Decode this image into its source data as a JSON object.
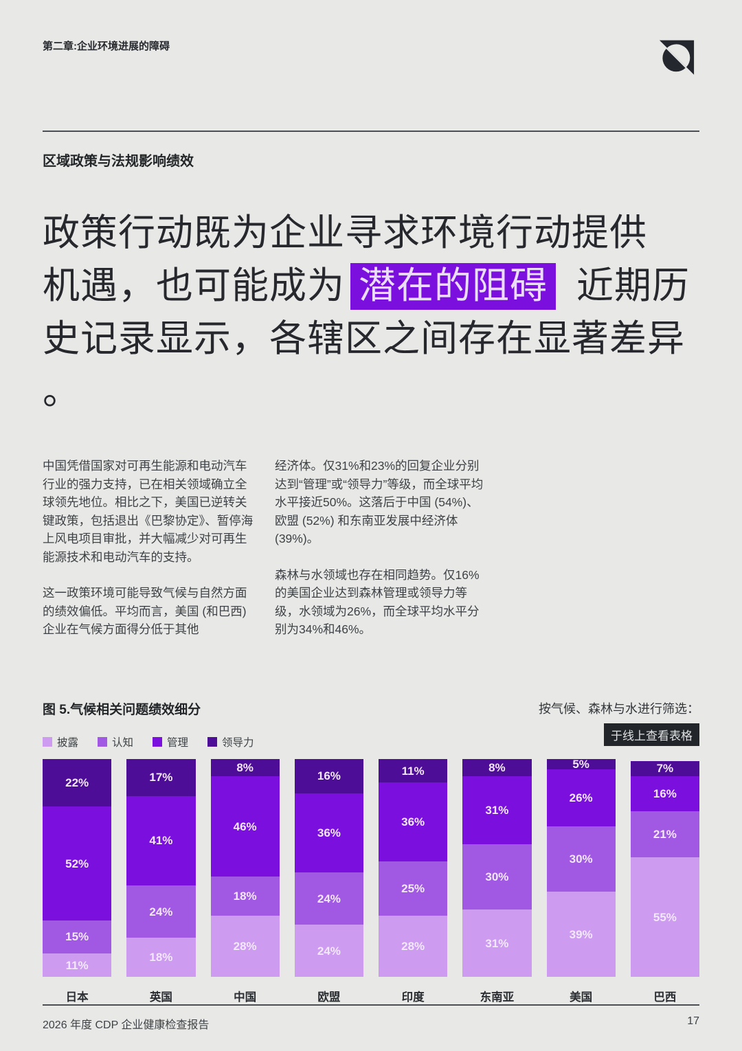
{
  "page": {
    "chapter": "第二章:企业环境进展的障碍",
    "section_heading": "区域政策与法规影响绩效",
    "footer": {
      "report_title": "2026 年度 CDP 企业健康检查报告",
      "page_number": "17"
    }
  },
  "headline": {
    "line1": "政策行动既为企业寻求环境行动提供",
    "line2_pre": "机遇，也可能成为",
    "highlight": "潜在的阻碍",
    "line2_post": "近期历",
    "line3": "史记录显示，各辖区之间存在显著差异",
    "line4": "。"
  },
  "body": {
    "left": [
      "中国凭借国家对可再生能源和电动汽车行业的强力支持，已在相关领域确立全球领先地位。相比之下，美国已逆转关键政策，包括退出《巴黎协定》、暂停海上风电项目审批，并大幅减少对可再生能源技术和电动汽车的支持。",
      "这一政策环境可能导致气候与自然方面的绩效偏低。平均而言，美国 (和巴西) 企业在气候方面得分低于其他"
    ],
    "right": [
      "经济体。仅31%和23%的回复企业分别达到“管理”或“领导力”等级，而全球平均水平接近50%。这落后于中国 (54%)、欧盟 (52%) 和东南亚发展中经济体 (39%)。",
      "森林与水领域也存在相同趋势。仅16%的美国企业达到森林管理或领导力等级，水领域为26%，而全球平均水平分别为34%和46%。"
    ]
  },
  "chart_data": {
    "type": "bar",
    "stacked": true,
    "title": "图 5.气候相关问题绩效细分",
    "filter_note": "按气候、森林与水进行筛选：",
    "link_label": "于线上查看表格",
    "categories": [
      "日本",
      "英国",
      "中国",
      "欧盟",
      "印度",
      "东南亚",
      "美国",
      "巴西"
    ],
    "series": [
      {
        "name": "披露",
        "color": "#cd9bf0",
        "values": [
          11,
          18,
          28,
          24,
          28,
          31,
          39,
          55
        ]
      },
      {
        "name": "认知",
        "color": "#a158e3",
        "values": [
          15,
          24,
          18,
          24,
          25,
          30,
          30,
          21
        ]
      },
      {
        "name": "管理",
        "color": "#7b10de",
        "values": [
          52,
          41,
          46,
          36,
          36,
          31,
          26,
          16
        ]
      },
      {
        "name": "领导力",
        "color": "#4e0d96",
        "values": [
          22,
          17,
          8,
          16,
          11,
          8,
          5,
          7
        ]
      }
    ],
    "value_suffix": "%",
    "ylim": [
      0,
      100
    ],
    "legend_position": "top-left",
    "accent_color": "#7b10de",
    "link_bg_color": "#22252a"
  }
}
